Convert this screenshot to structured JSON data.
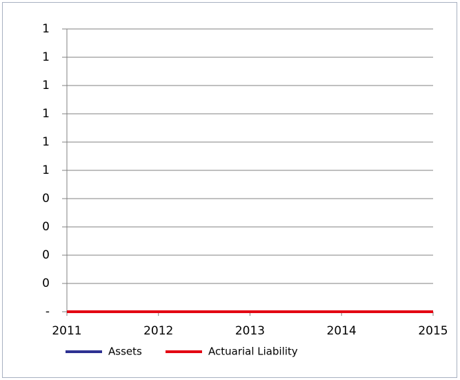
{
  "chart_data": {
    "type": "line",
    "x": [
      2011,
      2012,
      2013,
      2014,
      2015
    ],
    "series": [
      {
        "name": "Assets",
        "color": "#2e3192",
        "values": [
          0,
          0,
          0,
          0,
          0
        ]
      },
      {
        "name": "Actuarial Liability",
        "color": "#e30613",
        "values": [
          0,
          0,
          0,
          0,
          0
        ]
      }
    ],
    "xlim": [
      2011,
      2015
    ],
    "xticks": [
      2011,
      2012,
      2013,
      2014,
      2015
    ],
    "ylim": [
      0,
      1
    ],
    "yticks": [
      {
        "value": 0,
        "label": "-"
      },
      {
        "value": 0.1,
        "label": "0"
      },
      {
        "value": 0.2,
        "label": "0"
      },
      {
        "value": 0.3,
        "label": "0"
      },
      {
        "value": 0.4,
        "label": "0"
      },
      {
        "value": 0.5,
        "label": "1"
      },
      {
        "value": 0.6,
        "label": "1"
      },
      {
        "value": 0.7,
        "label": "1"
      },
      {
        "value": 0.8,
        "label": "1"
      },
      {
        "value": 0.9,
        "label": "1"
      },
      1
    ],
    "grid": true,
    "legend": "bottom"
  }
}
